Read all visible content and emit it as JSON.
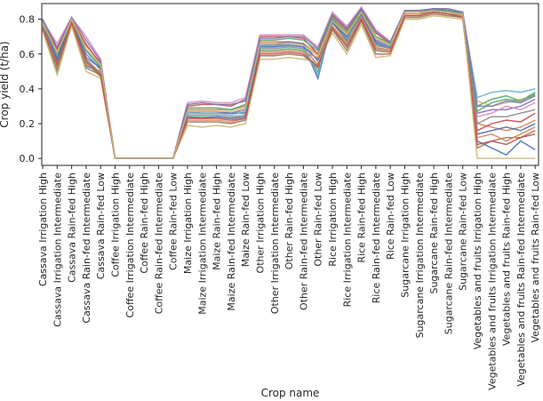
{
  "chart_data": {
    "type": "line",
    "title": "",
    "xlabel": "Crop name",
    "ylabel": "Crop yield (t/ha)",
    "ylim": [
      -0.04,
      0.89
    ],
    "yticks": [
      "0.0",
      "0.2",
      "0.4",
      "0.6",
      "0.8"
    ],
    "yticks_values": [
      0.0,
      0.2,
      0.4,
      0.6,
      0.8
    ],
    "grid": false,
    "legend": "none",
    "categories": [
      "Cassava Irrigation High",
      "Cassava Irrigation Intermediate",
      "Cassava Rain-fed High",
      "Cassava Rain-fed Intermediate",
      "Cassava Rain-fed Low",
      "Coffee Irrigation High",
      "Coffee Irrigation Intermediate",
      "Coffee Rain-fed High",
      "Coffee Rain-fed Intermediate",
      "Coffee Rain-fed Low",
      "Maize Irrigation High",
      "Maize Irrigation Intermediate",
      "Maize Rain-fed High",
      "Maize Rain-fed Intermediate",
      "Maize Rain-fed Low",
      "Other Irrigation High",
      "Other Irrigation Intermediate",
      "Other Rain-fed High",
      "Other Rain-fed Intermediate",
      "Other Rain-fed Low",
      "Rice Irrigation High",
      "Rice Irrigation Intermediate",
      "Rice Rain-fed High",
      "Rice Rain-fed Intermediate",
      "Rice Rain-fed Low",
      "Sugarcane Irrigation High",
      "Sugarcane Irrigation Intermediate",
      "Sugarcane Rain-fed High",
      "Sugarcane Rain-fed Intermediate",
      "Sugarcane Rain-fed Low",
      "Vegetables and fruits Irrigation High",
      "Vegetables and fruits Irrigation Intermediate",
      "Vegetables and fruits Rain-fed High",
      "Vegetables and fruits Rain-fed Intermediate",
      "Vegetables and fruits Rain-fed Low"
    ],
    "series": [
      {
        "color": "#4c72b0",
        "values": [
          0.8,
          0.56,
          0.79,
          0.53,
          0.5,
          0,
          0,
          0,
          0,
          0,
          0.27,
          0.27,
          0.27,
          0.26,
          0.26,
          0.65,
          0.65,
          0.66,
          0.65,
          0.46,
          0.79,
          0.68,
          0.86,
          0.66,
          0.63,
          0.84,
          0.84,
          0.86,
          0.85,
          0.83,
          0.1,
          0.06,
          0.02,
          0.1,
          0.05
        ]
      },
      {
        "color": "#dd8452",
        "values": [
          0.79,
          0.62,
          0.8,
          0.66,
          0.54,
          0,
          0,
          0,
          0,
          0,
          0.28,
          0.28,
          0.28,
          0.28,
          0.3,
          0.67,
          0.67,
          0.67,
          0.66,
          0.6,
          0.8,
          0.72,
          0.85,
          0.7,
          0.66,
          0.84,
          0.84,
          0.85,
          0.84,
          0.83,
          0.2,
          0.18,
          0.16,
          0.18,
          0.22
        ]
      },
      {
        "color": "#55a868",
        "values": [
          0.75,
          0.52,
          0.78,
          0.55,
          0.47,
          0,
          0,
          0,
          0,
          0,
          0.24,
          0.24,
          0.24,
          0.23,
          0.24,
          0.62,
          0.62,
          0.63,
          0.62,
          0.5,
          0.76,
          0.65,
          0.8,
          0.63,
          0.62,
          0.82,
          0.82,
          0.84,
          0.83,
          0.81,
          0.3,
          0.34,
          0.36,
          0.33,
          0.38
        ]
      },
      {
        "color": "#c44e52",
        "values": [
          0.78,
          0.63,
          0.8,
          0.65,
          0.55,
          0,
          0,
          0,
          0,
          0,
          0.3,
          0.31,
          0.31,
          0.3,
          0.34,
          0.7,
          0.7,
          0.7,
          0.69,
          0.6,
          0.82,
          0.74,
          0.86,
          0.72,
          0.66,
          0.85,
          0.85,
          0.86,
          0.85,
          0.84,
          0.16,
          0.2,
          0.22,
          0.21,
          0.26
        ]
      },
      {
        "color": "#8172b3",
        "values": [
          0.77,
          0.58,
          0.8,
          0.6,
          0.51,
          0,
          0,
          0,
          0,
          0,
          0.27,
          0.26,
          0.26,
          0.26,
          0.28,
          0.66,
          0.66,
          0.67,
          0.66,
          0.56,
          0.8,
          0.7,
          0.84,
          0.68,
          0.65,
          0.84,
          0.84,
          0.85,
          0.85,
          0.83,
          0.26,
          0.28,
          0.28,
          0.3,
          0.34
        ]
      },
      {
        "color": "#937860",
        "values": [
          0.74,
          0.5,
          0.77,
          0.52,
          0.48,
          0,
          0,
          0,
          0,
          0,
          0.21,
          0.21,
          0.21,
          0.2,
          0.22,
          0.59,
          0.59,
          0.6,
          0.59,
          0.52,
          0.74,
          0.62,
          0.79,
          0.6,
          0.6,
          0.81,
          0.81,
          0.83,
          0.82,
          0.81,
          0.06,
          0.1,
          0.12,
          0.12,
          0.16
        ]
      },
      {
        "color": "#da8bc3",
        "values": [
          0.79,
          0.66,
          0.81,
          0.7,
          0.57,
          0,
          0,
          0,
          0,
          0,
          0.32,
          0.33,
          0.32,
          0.32,
          0.35,
          0.71,
          0.71,
          0.71,
          0.71,
          0.64,
          0.84,
          0.76,
          0.87,
          0.74,
          0.67,
          0.85,
          0.85,
          0.86,
          0.86,
          0.84,
          0.24,
          0.26,
          0.3,
          0.28,
          0.32
        ]
      },
      {
        "color": "#8c8c8c",
        "values": [
          0.76,
          0.55,
          0.79,
          0.57,
          0.49,
          0,
          0,
          0,
          0,
          0,
          0.25,
          0.25,
          0.25,
          0.24,
          0.25,
          0.63,
          0.63,
          0.64,
          0.63,
          0.54,
          0.78,
          0.67,
          0.82,
          0.65,
          0.63,
          0.83,
          0.83,
          0.85,
          0.84,
          0.82,
          0.2,
          0.24,
          0.24,
          0.26,
          0.28
        ]
      },
      {
        "color": "#ccb974",
        "values": [
          0.73,
          0.48,
          0.76,
          0.5,
          0.46,
          0,
          0,
          0,
          0,
          0,
          0.19,
          0.18,
          0.19,
          0.18,
          0.2,
          0.57,
          0.57,
          0.58,
          0.57,
          0.55,
          0.72,
          0.6,
          0.77,
          0.58,
          0.59,
          0.8,
          0.8,
          0.82,
          0.81,
          0.8,
          0.33,
          0.3,
          0.32,
          0.34,
          0.36
        ]
      },
      {
        "color": "#64b5cd",
        "values": [
          0.77,
          0.6,
          0.8,
          0.62,
          0.52,
          0,
          0,
          0,
          0,
          0,
          0.26,
          0.26,
          0.26,
          0.25,
          0.27,
          0.64,
          0.64,
          0.65,
          0.64,
          0.48,
          0.79,
          0.69,
          0.83,
          0.67,
          0.64,
          0.84,
          0.84,
          0.85,
          0.84,
          0.83,
          0.35,
          0.38,
          0.39,
          0.38,
          0.4
        ]
      },
      {
        "color": "#4c72b0",
        "values": [
          0.78,
          0.57,
          0.8,
          0.58,
          0.52,
          0,
          0,
          0,
          0,
          0,
          0.24,
          0.23,
          0.24,
          0.23,
          0.24,
          0.64,
          0.64,
          0.65,
          0.64,
          0.57,
          0.78,
          0.7,
          0.83,
          0.67,
          0.64,
          0.84,
          0.84,
          0.85,
          0.85,
          0.83,
          0.14,
          0.16,
          0.18,
          0.16,
          0.2
        ]
      },
      {
        "color": "#dd8452",
        "values": [
          0.76,
          0.53,
          0.79,
          0.54,
          0.5,
          0,
          0,
          0,
          0,
          0,
          0.22,
          0.22,
          0.22,
          0.21,
          0.23,
          0.61,
          0.61,
          0.62,
          0.61,
          0.58,
          0.76,
          0.66,
          0.81,
          0.64,
          0.62,
          0.83,
          0.83,
          0.84,
          0.83,
          0.82,
          0.12,
          0.14,
          0.1,
          0.14,
          0.18
        ]
      },
      {
        "color": "#55a868",
        "values": [
          0.79,
          0.6,
          0.8,
          0.62,
          0.53,
          0,
          0,
          0,
          0,
          0,
          0.29,
          0.29,
          0.29,
          0.28,
          0.31,
          0.68,
          0.68,
          0.69,
          0.68,
          0.62,
          0.81,
          0.73,
          0.85,
          0.7,
          0.66,
          0.85,
          0.85,
          0.86,
          0.85,
          0.84,
          0.27,
          0.32,
          0.34,
          0.33,
          0.37
        ]
      },
      {
        "color": "#c44e52",
        "values": [
          0.75,
          0.54,
          0.78,
          0.56,
          0.48,
          0,
          0,
          0,
          0,
          0,
          0.23,
          0.23,
          0.23,
          0.22,
          0.23,
          0.6,
          0.6,
          0.61,
          0.6,
          0.53,
          0.75,
          0.64,
          0.8,
          0.62,
          0.61,
          0.82,
          0.82,
          0.84,
          0.83,
          0.81,
          0.08,
          0.1,
          0.08,
          0.12,
          0.14
        ]
      },
      {
        "color": "#8172b3",
        "values": [
          0.8,
          0.64,
          0.81,
          0.68,
          0.56,
          0,
          0,
          0,
          0,
          0,
          0.31,
          0.32,
          0.31,
          0.31,
          0.33,
          0.69,
          0.69,
          0.7,
          0.7,
          0.63,
          0.83,
          0.75,
          0.86,
          0.73,
          0.67,
          0.85,
          0.85,
          0.86,
          0.86,
          0.84,
          0.3,
          0.3,
          0.33,
          0.32,
          0.36
        ]
      },
      {
        "color": "#ccb974",
        "values": [
          0.78,
          0.61,
          0.8,
          0.63,
          0.54,
          0,
          0,
          0,
          0,
          0,
          0.27,
          0.27,
          0.27,
          0.27,
          0.29,
          0.66,
          0.66,
          0.66,
          0.65,
          0.59,
          0.79,
          0.71,
          0.84,
          0.69,
          0.65,
          0.84,
          0.84,
          0.85,
          0.84,
          0.83,
          0.0,
          0.0,
          0.0,
          0.0,
          0.0
        ]
      }
    ]
  }
}
